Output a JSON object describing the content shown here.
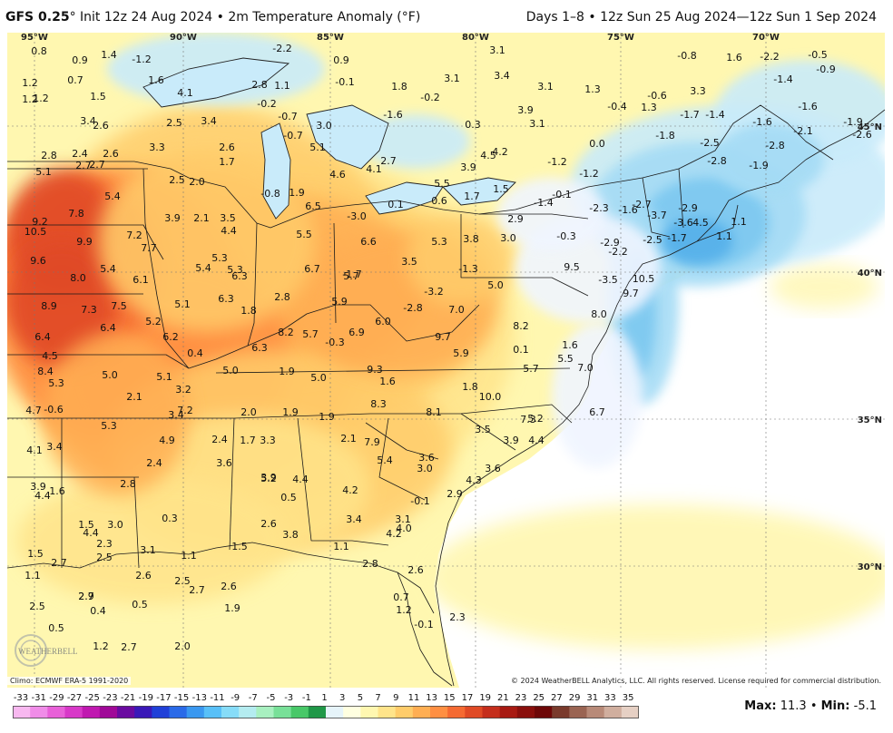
{
  "header": {
    "model": "GFS 0.25",
    "degree_sign": "°",
    "init": "Init 12z 24 Aug 2024",
    "bullet": "•",
    "field": "2m Temperature Anomaly (°F)",
    "range": "Days 1–8 • 12z Sun 25 Aug 2024—12z Sun 1 Sep 2024"
  },
  "longitude_labels": [
    "95°W",
    "90°W",
    "85°W",
    "80°W",
    "75°W",
    "70°W"
  ],
  "latitude_labels": [
    "45°N",
    "40°N",
    "35°N",
    "30°N"
  ],
  "station_values": [
    "0.8",
    "0.9",
    "1.4",
    "-1.2",
    "-2.2",
    "0.9",
    "3.1",
    "-0.8",
    "1.6",
    "-2.2",
    "-0.5",
    "-0.9",
    "1.2",
    "0.7",
    "1.6",
    "1.2",
    "2.8",
    "1.1",
    "-0.1",
    "1.8",
    "3.1",
    "3.4",
    "3.1",
    "1.3",
    "-0.6",
    "3.3",
    "-1.4",
    "1.2",
    "1.5",
    "4.1",
    "-0.2",
    "-0.7",
    "-1.6",
    "-0.2",
    "-0.4",
    "1.3",
    "-1.7",
    "-1.4",
    "-1.6",
    "-1.6",
    "3.4",
    "2.6",
    "2.5",
    "3.4",
    "3.0",
    "0.3",
    "3.9",
    "3.1",
    "-1.8",
    "-2.1",
    "-1.9",
    "-2.6",
    "3.3",
    "2.6",
    "1.7",
    "-0.7",
    "5.1",
    "4.5",
    "4.2",
    "0.0",
    "-2.5",
    "-2.8",
    "2.8",
    "2.4",
    "2.7",
    "2.6",
    "2.7",
    "4.6",
    "4.1",
    "2.7",
    "5.5",
    "3.9",
    "-1.2",
    "-1.2",
    "-2.8",
    "-1.9",
    "5.1",
    "2.5",
    "2.0",
    "-0.8",
    "1.9",
    "1.5",
    "-0.1",
    "-1.6",
    "-3.7",
    "-3.6",
    "4.5",
    "5.4",
    "6.5",
    "-3.0",
    "0.1",
    "0.6",
    "1.7",
    "-1.4",
    "-2.3",
    "-2.7",
    "-2.9",
    "1.1",
    "7.8",
    "9.2",
    "3.9",
    "2.1",
    "3.5",
    "2.9",
    "-0.3",
    "-2.9",
    "-2.5",
    "-1.7",
    "1.1",
    "10.5",
    "9.9",
    "7.2",
    "4.4",
    "5.5",
    "6.6",
    "5.3",
    "3.8",
    "3.0",
    "-2.2",
    "7.7",
    "5.4",
    "6.3",
    "5.7",
    "3.5",
    "-1.3",
    "9.5",
    "9.6",
    "5.4",
    "5.3",
    "5.3",
    "6.7",
    "-1.7",
    "-3.5",
    "10.5",
    "8.0",
    "6.1",
    "2.8",
    "5.0",
    "-3.2",
    "9.7",
    "8.9",
    "7.3",
    "7.5",
    "5.1",
    "6.3",
    "5.9",
    "6.0",
    "-2.8",
    "7.0",
    "8.0",
    "6.4",
    "5.2",
    "1.8",
    "8.2",
    "8.2",
    "6.4",
    "6.2",
    "6.3",
    "5.7",
    "-0.3",
    "6.9",
    "9.7",
    "1.6",
    "4.5",
    "0.4",
    "0.1",
    "5.9",
    "5.5",
    "7.0",
    "8.4",
    "5.0",
    "5.1",
    "5.0",
    "1.9",
    "5.0",
    "9.3",
    "5.7",
    "5.3",
    "3.2",
    "2.1",
    "1.6",
    "1.8",
    "10.0",
    "4.7",
    "-0.6",
    "7.2",
    "8.3",
    "6.7",
    "5.3",
    "3.4",
    "2.0",
    "1.9",
    "1.9",
    "8.1",
    "7.3",
    "5.2",
    "4.9",
    "2.4",
    "1.7",
    "3.3",
    "3.5",
    "3.9",
    "4.4",
    "4.1",
    "3.4",
    "2.1",
    "7.9",
    "5.4",
    "3.6",
    "2.4",
    "3.6",
    "5.2",
    "3.6",
    "3.0",
    "2.8",
    "3.9",
    "4.4",
    "4.3",
    "3.9",
    "4.4",
    "1.6",
    "0.5",
    "4.2",
    "2.9",
    "-0.1",
    "0.3",
    "3.4",
    "3.1",
    "4.0",
    "1.5",
    "3.0",
    "2.6",
    "4.2",
    "4.4",
    "2.3",
    "3.8",
    "3.1",
    "1.1",
    "1.5",
    "1.1",
    "1.5",
    "2.7",
    "2.5",
    "2.8",
    "1.1",
    "2.9",
    "2.6",
    "2.6",
    "2.5",
    "2.7",
    "2.6",
    "2.5",
    "2.7",
    "0.4",
    "0.5",
    "1.9",
    "0.7",
    "1.2",
    "0.5",
    "2.3",
    "2.7",
    "-0.1",
    "1.2",
    "2.0"
  ],
  "footer": {
    "climo": "Climo: ECMWF ERA-5 1991-2020",
    "copyright": "© 2024 WeatherBELL Analytics, LLC. All rights reserved. License required for commercial distribution.",
    "logo_text": "WEATHERBELL",
    "max_label": "Max:",
    "max_value": "11.3",
    "bullet": "•",
    "min_label": "Min:",
    "min_value": "-5.1"
  },
  "colorbar": {
    "ticks": [
      "-33",
      "-31",
      "-29",
      "-27",
      "-25",
      "-23",
      "-21",
      "-19",
      "-17",
      "-15",
      "-13",
      "-11",
      "-9",
      "-7",
      "-5",
      "-3",
      "-1",
      "1",
      "3",
      "5",
      "7",
      "9",
      "11",
      "13",
      "15",
      "17",
      "19",
      "21",
      "23",
      "25",
      "27",
      "29",
      "31",
      "33",
      "35"
    ],
    "colors": [
      "#f8b8f0",
      "#f08ce8",
      "#e860d8",
      "#d838c8",
      "#c018b0",
      "#a00898",
      "#6a0aa0",
      "#3a18b8",
      "#2040d8",
      "#2a6ae8",
      "#3a98f0",
      "#58c0f8",
      "#86dcf8",
      "#b4ecf0",
      "#a8f0c0",
      "#78e098",
      "#48c868",
      "#209848",
      "#e6f4fa",
      "#ffffe0",
      "#fff7b0",
      "#ffe48a",
      "#ffcc6a",
      "#ffae52",
      "#ff8f42",
      "#f56a32",
      "#e04a25",
      "#c52e1c",
      "#a81a12",
      "#8a0f0c",
      "#6e0808",
      "#7a3a2c",
      "#9a6452",
      "#b88a78",
      "#d0ae9e",
      "#e6d0c4"
    ]
  },
  "colors": {
    "ocean": "#ffffff",
    "near_zero": "#f0f5ff",
    "warm_1": "#fff7b0",
    "warm_2": "#ffe48a",
    "warm_3": "#ffcc6a",
    "warm_4": "#ffae52",
    "warm_5": "#ff8f42",
    "warm_6": "#f56a32",
    "warm_7": "#e04a25",
    "cool_1": "#c9ebfa",
    "cool_2": "#a4dbf5",
    "cool_3": "#7cc8f0",
    "cool_4": "#55b0ea"
  }
}
